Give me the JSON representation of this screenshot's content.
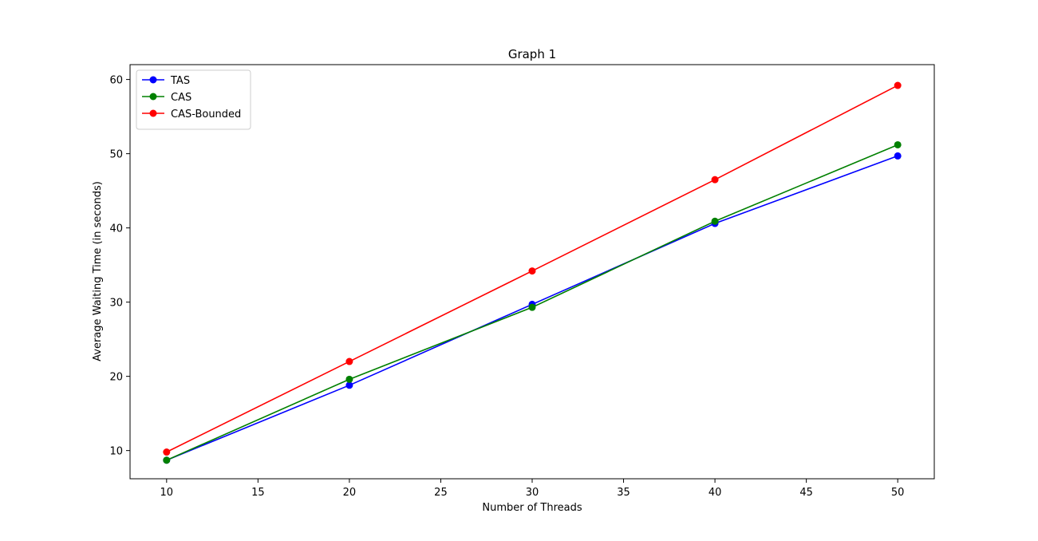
{
  "chart_data": {
    "type": "line",
    "title": "Graph 1",
    "xlabel": "Number of Threads",
    "ylabel": "Average Waiting Time (in seconds)",
    "x": [
      10,
      20,
      30,
      40,
      50
    ],
    "xlim": [
      8,
      52
    ],
    "ylim": [
      6.2,
      62
    ],
    "xticks": [
      10,
      15,
      20,
      25,
      30,
      35,
      40,
      45,
      50
    ],
    "yticks": [
      10,
      20,
      30,
      40,
      50,
      60
    ],
    "grid": false,
    "legend_position": "top-left",
    "series": [
      {
        "name": "TAS",
        "color": "#0000ff",
        "marker": "circle",
        "values": [
          8.7,
          18.8,
          29.7,
          40.6,
          49.7
        ]
      },
      {
        "name": "CAS",
        "color": "#008000",
        "marker": "circle",
        "values": [
          8.7,
          19.6,
          29.3,
          40.9,
          51.2
        ]
      },
      {
        "name": "CAS-Bounded",
        "color": "#ff0000",
        "marker": "circle",
        "values": [
          9.8,
          22.0,
          34.2,
          46.5,
          59.2
        ]
      }
    ]
  }
}
